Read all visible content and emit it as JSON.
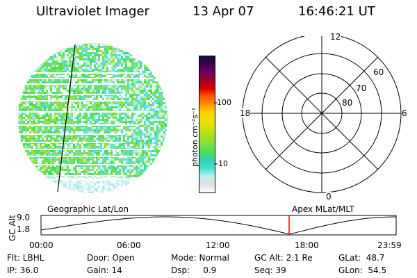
{
  "header": {
    "title": "Ultraviolet Imager",
    "date": "13 Apr 07",
    "time": "16:46:21 UT"
  },
  "colorbar": {
    "unit_label": "photon cm⁻²s⁻¹",
    "ticks": [
      "100",
      "10"
    ],
    "colors": [
      "#ffffff",
      "#e0e0e0",
      "#b8f0f0",
      "#40e0d0",
      "#30d0b0",
      "#40e060",
      "#80e040",
      "#a0e020",
      "#d0e010",
      "#f0e000",
      "#ffd000",
      "#ff9000",
      "#ff5000",
      "#e00000",
      "#a00020",
      "#700060",
      "#400050",
      "#101040"
    ]
  },
  "polar_plot": {
    "mlt_labels": [
      "12",
      "18",
      "6",
      "0"
    ],
    "lat_labels": [
      "60",
      "70",
      "80"
    ]
  },
  "image_labels": {
    "left": "Geographic Lat/Lon",
    "right": "Apex MLat/MLT"
  },
  "altitude_strip": {
    "ylabel": "GC Alt",
    "y_ticks": [
      "9.0",
      "1.8"
    ],
    "time_ticks": [
      "00:00",
      "06:00",
      "12:00",
      "18:00",
      "23:59"
    ],
    "current_marker_color": "#ff0000"
  },
  "info": {
    "flt": "Flt: LBHL",
    "door": "Door: Open",
    "mode": "Mode: Normal",
    "gc_alt": "GC Alt: 2.1 Re",
    "glat": "GLat:  48.7",
    "ip": "IP: 36.0",
    "gain": "Gain: 14",
    "dsp": "Dsp:     0.9",
    "seq": "Seq: 39",
    "glon": "GLon:  54.5"
  }
}
